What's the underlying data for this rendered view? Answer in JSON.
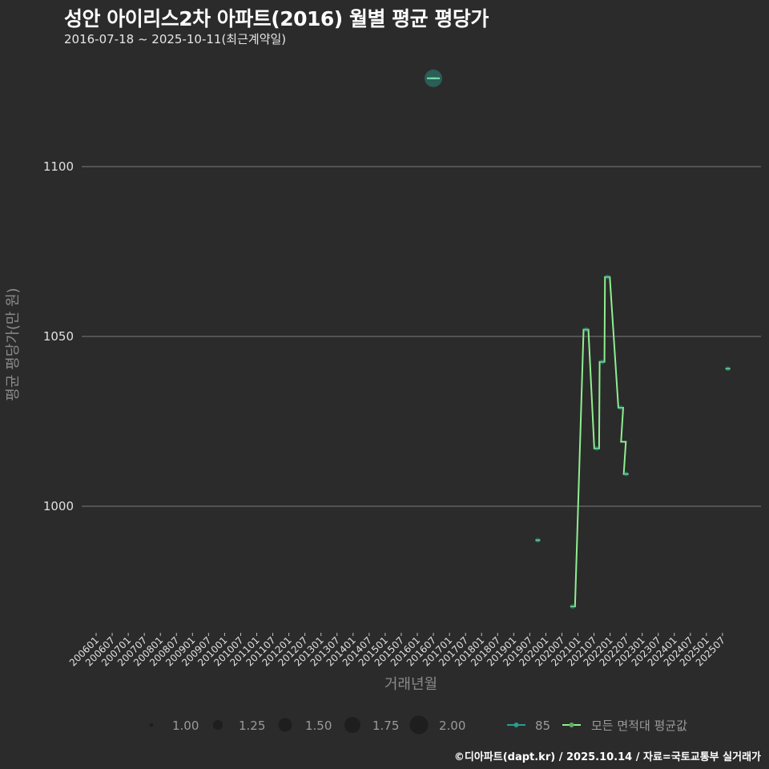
{
  "header": {
    "title": "성안 아이리스2차 아파트(2016) 월별 평균 평당가",
    "subtitle": "2016-07-18 ~ 2025-10-11(최근계약일)"
  },
  "footer": "©디아파트(dapt.kr) / 2025.10.14 / 자료=국토교통부 실거래가",
  "colors": {
    "background": "#2b2b2b",
    "grid": "#6b6b6b",
    "series_85": "#2a9d8f",
    "series_avg": "#90ee90",
    "size_legend": "#1e1e1e"
  },
  "chart_data": {
    "type": "line",
    "title": "성안 아이리스2차 아파트(2016) 월별 평균 평당가",
    "subtitle": "2016-07-18 ~ 2025-10-11(최근계약일)",
    "xlabel": "거래년월",
    "ylabel": "평균 평당가(만 원)",
    "x_tick_labels": [
      "200601",
      "200607",
      "200701",
      "200707",
      "200801",
      "200807",
      "200901",
      "200907",
      "201001",
      "201007",
      "201101",
      "201107",
      "201201",
      "201207",
      "201301",
      "201307",
      "201401",
      "201407",
      "201501",
      "201507",
      "201601",
      "201607",
      "201701",
      "201707",
      "201801",
      "201807",
      "201901",
      "201907",
      "202001",
      "202007",
      "202101",
      "202107",
      "202201",
      "202207",
      "202301",
      "202307",
      "202401",
      "202407",
      "202501",
      "202507"
    ],
    "y_ticks": [
      1000,
      1050,
      1100
    ],
    "ylim": [
      962,
      1130
    ],
    "grid": true,
    "legend_position": "bottom",
    "series": [
      {
        "name": "85",
        "type": "scatter",
        "points": [
          {
            "x": "201607",
            "y": 1126,
            "size": 2.0
          },
          {
            "x": "201910",
            "y": 990,
            "size": 1.0
          },
          {
            "x": "202011",
            "y": 970.5,
            "size": 1.0
          },
          {
            "x": "202104",
            "y": 1052,
            "size": 1.0
          },
          {
            "x": "202108",
            "y": 1017,
            "size": 1.0
          },
          {
            "x": "202110",
            "y": 1042.5,
            "size": 1.0
          },
          {
            "x": "202112",
            "y": 1067.5,
            "size": 1.0
          },
          {
            "x": "202205",
            "y": 1029,
            "size": 1.0
          },
          {
            "x": "202207",
            "y": 1009.5,
            "size": 1.0
          },
          {
            "x": "202509",
            "y": 1040.5,
            "size": 1.0
          }
        ]
      },
      {
        "name": "모든 면적대 평균값",
        "type": "line",
        "points": [
          {
            "x": "201607",
            "y": 1126
          },
          {
            "x": "201910",
            "y": 990
          },
          {
            "x": "202011",
            "y": 970.5
          },
          {
            "x": "202104",
            "y": 1052
          },
          {
            "x": "202108",
            "y": 1017
          },
          {
            "x": "202110",
            "y": 1042.5
          },
          {
            "x": "202112",
            "y": 1067.5
          },
          {
            "x": "202205",
            "y": 1029
          },
          {
            "x": "202206",
            "y": 1019
          },
          {
            "x": "202207",
            "y": 1009.5
          },
          {
            "x": "202509",
            "y": 1040.5
          }
        ]
      }
    ],
    "size_legend": {
      "values": [
        1.0,
        1.25,
        1.5,
        1.75,
        2.0
      ],
      "labels": [
        "1.00",
        "1.25",
        "1.50",
        "1.75",
        "2.00"
      ]
    }
  },
  "legend": {
    "size_labels": [
      "1.00",
      "1.25",
      "1.50",
      "1.75",
      "2.00"
    ],
    "series_labels": [
      "85",
      "모든 면적대 평균값"
    ]
  },
  "axes": {
    "x_title": "거래년월",
    "y_title": "평균 평당가(만 원)",
    "y_labels": [
      "1100",
      "1050",
      "1000"
    ]
  }
}
